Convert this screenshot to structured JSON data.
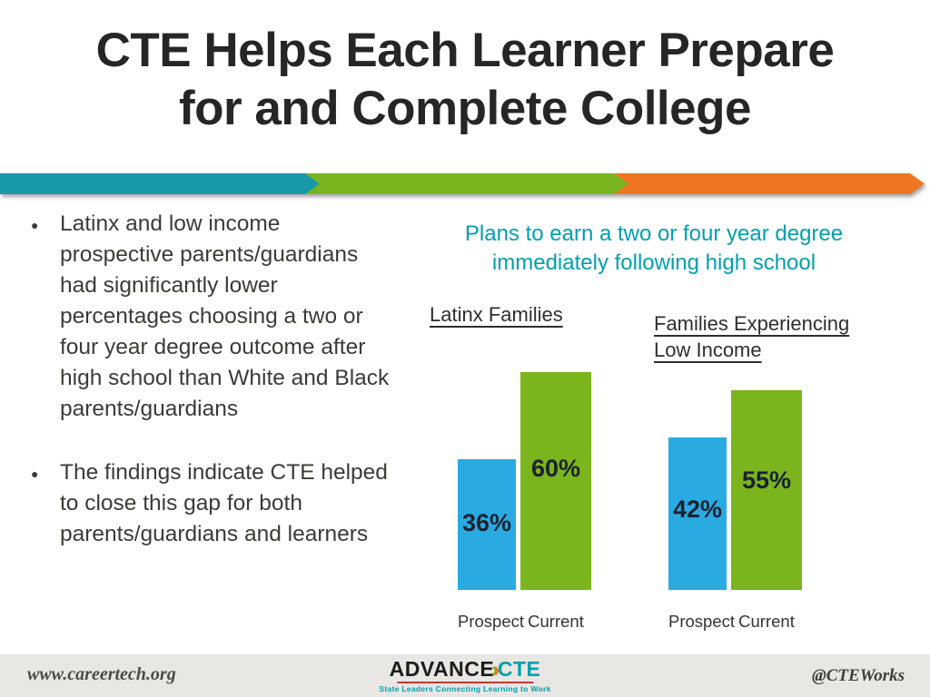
{
  "slide_title": {
    "line1": "CTE Helps Each Learner Prepare",
    "line2": "for and Complete College"
  },
  "banner": {
    "colors": [
      "#1a9aa9",
      "#7ab41e",
      "#ee7623"
    ]
  },
  "bullet_marker": "●",
  "bullets": [
    "Latinx and low income prospective parents/guardians had significantly lower percentages choosing a two or four year degree outcome after high school than White and Black parents/guardians",
    "The findings indicate CTE helped to close this gap for both parents/guardians and learners"
  ],
  "chart_heading": {
    "line1": "Plans to earn a two or four year degree",
    "line2": "immediately following high school",
    "color": "#00a0af"
  },
  "chart_data": [
    {
      "type": "bar",
      "title": "Latinx Families",
      "categories": [
        "Prospect",
        "Current"
      ],
      "values": [
        36,
        60
      ],
      "value_labels": [
        "36%",
        "60%"
      ],
      "bar_colors": [
        "#29abe2",
        "#7ab51d"
      ],
      "label_color": "#1b2130",
      "ylim": [
        0,
        65
      ],
      "grid": false,
      "legend": "none"
    },
    {
      "type": "bar",
      "title": "Families Experiencing Low Income",
      "categories": [
        "Prospect",
        "Current"
      ],
      "values": [
        42,
        55
      ],
      "value_labels": [
        "42%",
        "55%"
      ],
      "bar_colors": [
        "#29abe2",
        "#7ab51d"
      ],
      "label_color": "#1b2130",
      "ylim": [
        0,
        65
      ],
      "grid": false,
      "legend": "none"
    }
  ],
  "footer": {
    "left": "www.careertech.org",
    "right": "@CTEWorks",
    "logo": {
      "word1": "ADVANCE",
      "chevron": "›",
      "chevron_colors": [
        "#7ab51d",
        "#ee7623"
      ],
      "word2": "CTE",
      "word2_color": "#00a0af",
      "rule_color": "#c0392b",
      "tagline": "State Leaders Connecting Learning to Work",
      "tagline_color": "#00a0af"
    }
  }
}
